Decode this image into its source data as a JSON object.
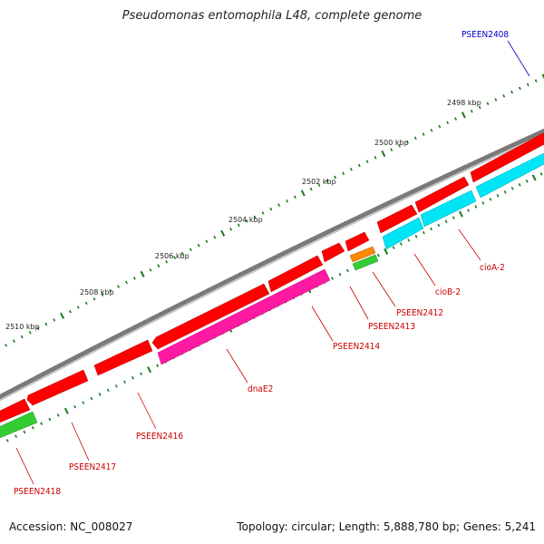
{
  "title": "Pseudomonas entomophila L48, complete genome",
  "footer": {
    "accession": "Accession: NC_008027",
    "summary": "Topology: circular; Length: 5,888,780 bp; Genes: 5,241"
  },
  "colors": {
    "backbone": "#7a7a7a",
    "forward_cds": "#ff0000",
    "reverse_cds": "#00ffff",
    "magenta_cds": "#ff1aa3",
    "green_cds": "#33cc33",
    "orange_cds": "#ff8800",
    "tick": "#1a7a1a",
    "label_red": "#cc0000",
    "label_blue": "#0000cc"
  },
  "ruler": {
    "ticks": [
      "2498 kbp",
      "2500 kbp",
      "2502 kbp",
      "2504 kbp",
      "2506 kbp",
      "2508 kbp",
      "2510 kbp"
    ]
  },
  "gene_labels": [
    {
      "text": "PSEEN2408",
      "color": "blue"
    },
    {
      "text": "cioA-2",
      "color": "red"
    },
    {
      "text": "cioB-2",
      "color": "red"
    },
    {
      "text": "PSEEN2412",
      "color": "red"
    },
    {
      "text": "PSEEN2413",
      "color": "red"
    },
    {
      "text": "PSEEN2414",
      "color": "red"
    },
    {
      "text": "dnaE2",
      "color": "red"
    },
    {
      "text": "PSEEN2416",
      "color": "red"
    },
    {
      "text": "PSEEN2417",
      "color": "red"
    },
    {
      "text": "PSEEN2418",
      "color": "red"
    }
  ]
}
